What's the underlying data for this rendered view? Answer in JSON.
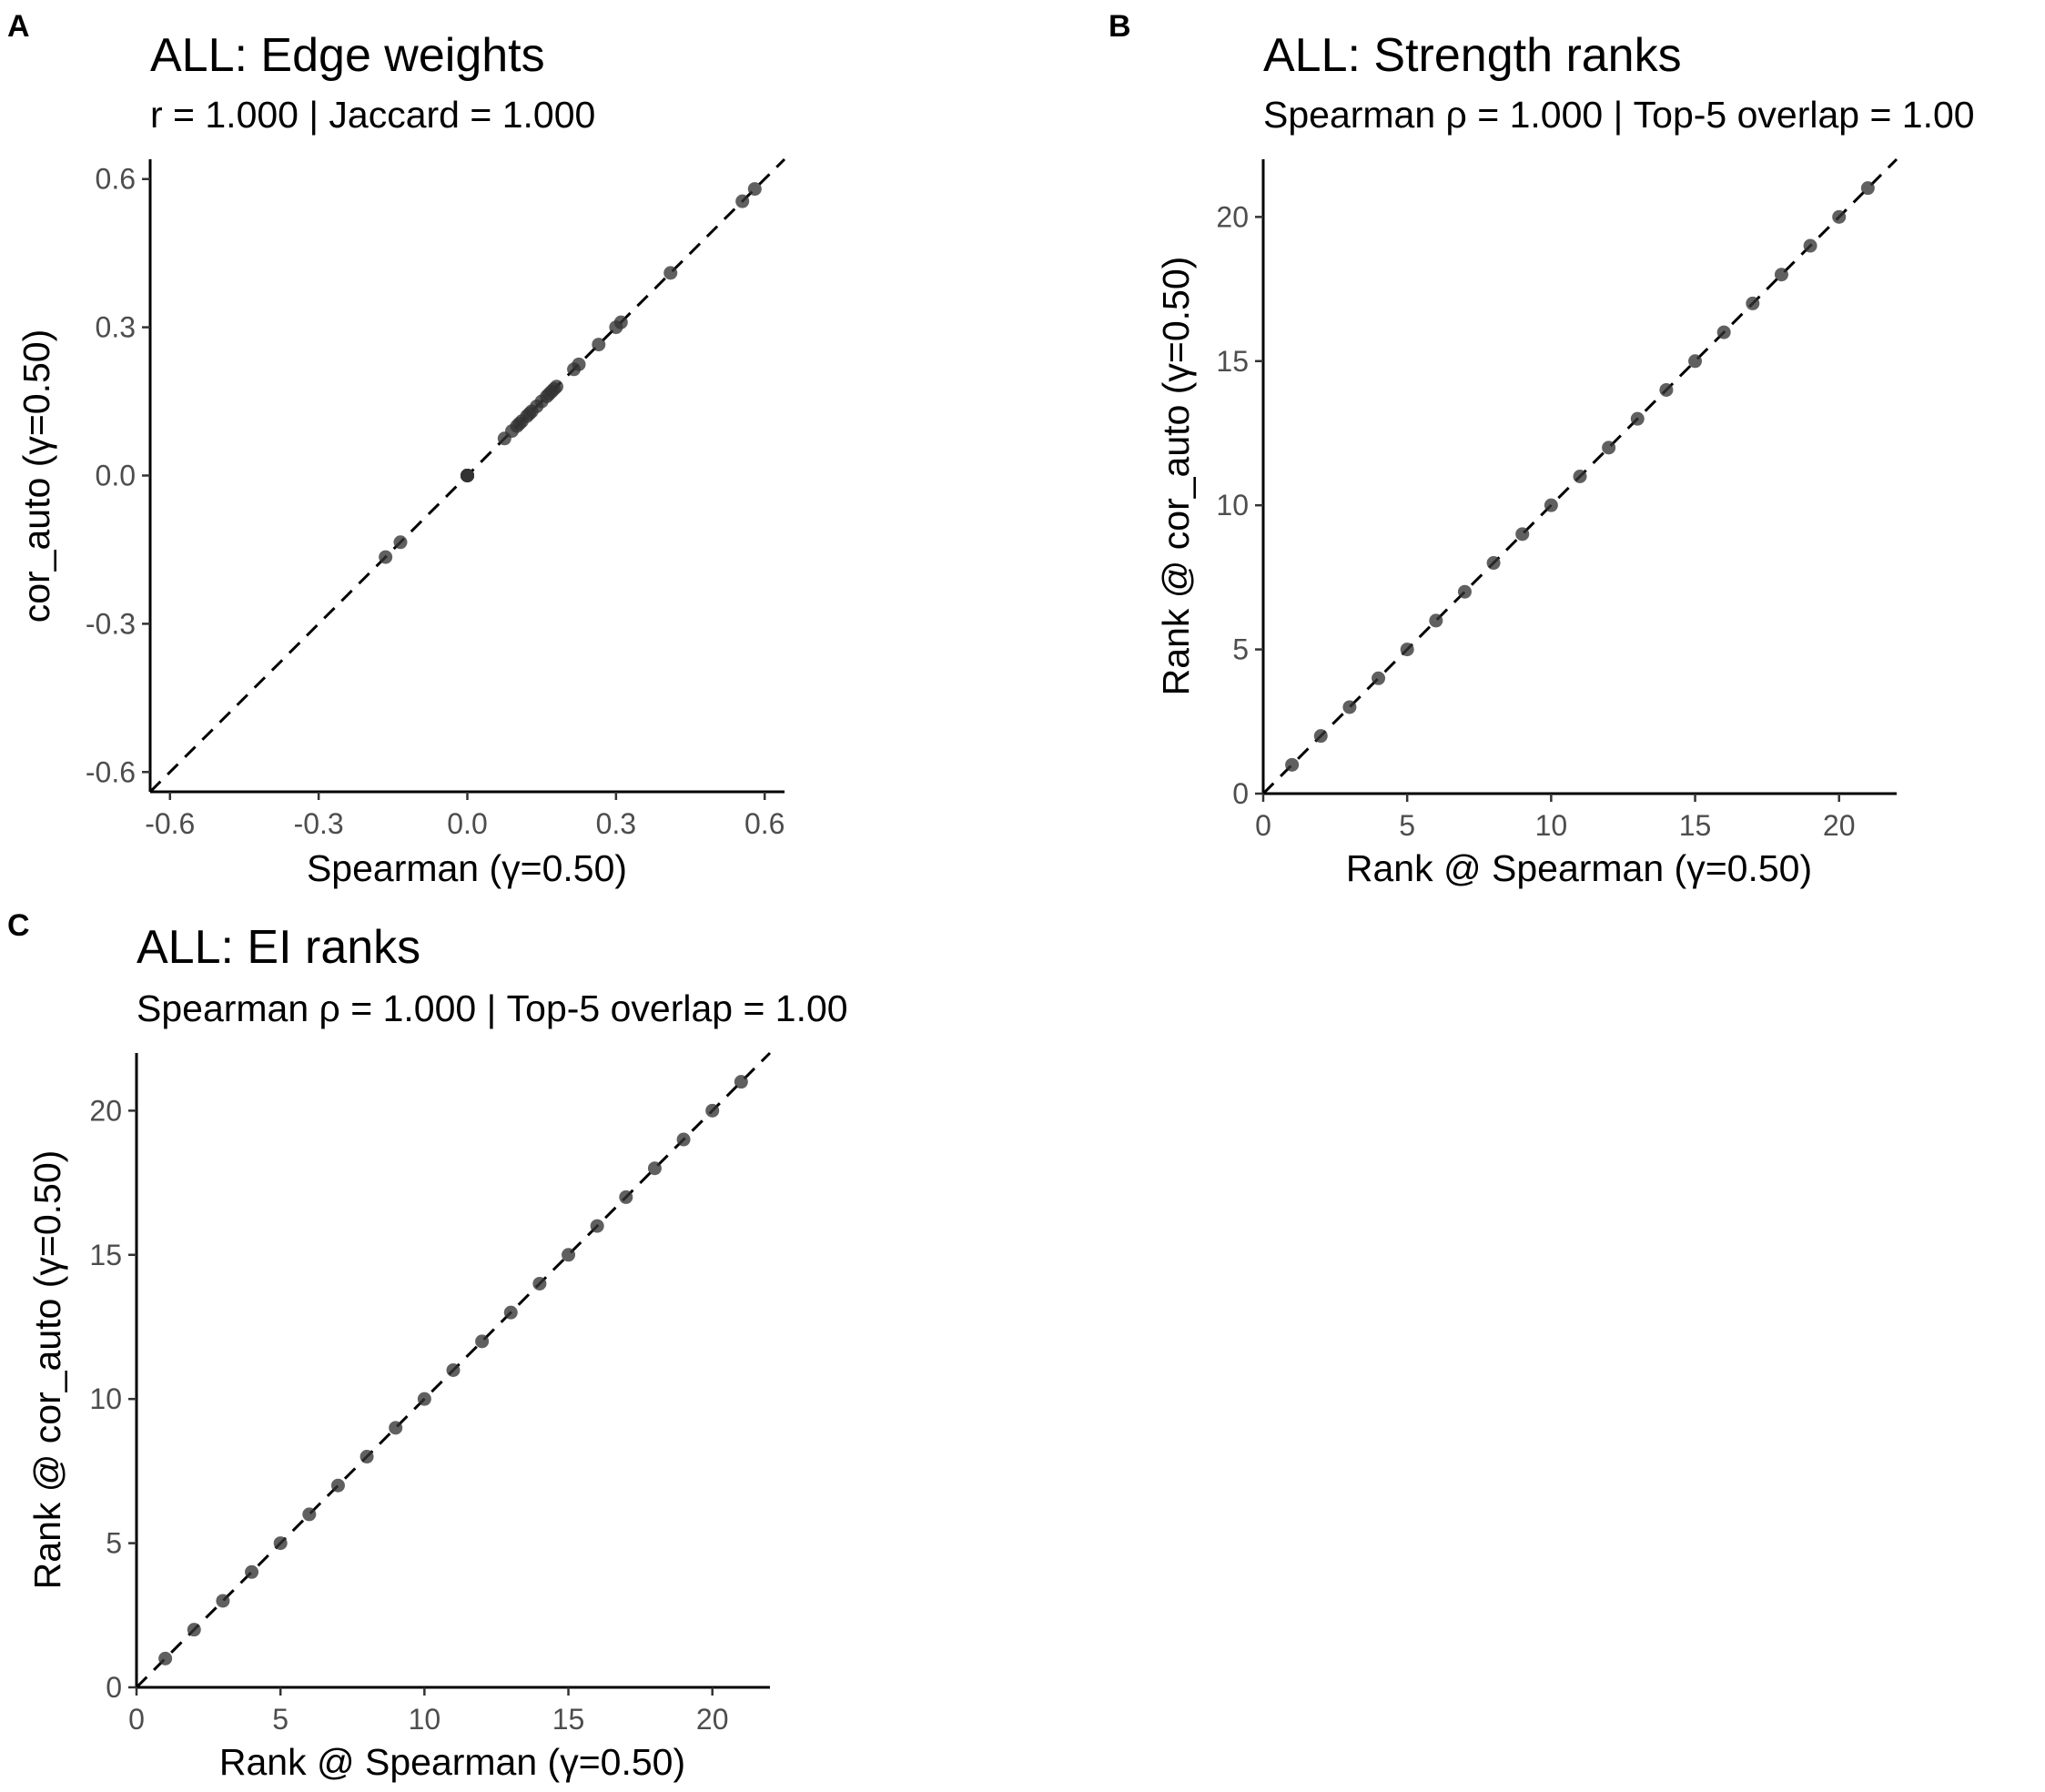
{
  "chart_data": [
    {
      "panel": "A",
      "type": "scatter",
      "title": "ALL: Edge weights",
      "subtitle": "r = 1.000 | Jaccard = 1.000",
      "xlabel": "Spearman (γ=0.50)",
      "ylabel": "cor_auto (γ=0.50)",
      "xlim": [
        -0.64,
        0.64
      ],
      "ylim": [
        -0.64,
        0.64
      ],
      "xticks": [
        -0.6,
        -0.3,
        0.0,
        0.3,
        0.6
      ],
      "yticks": [
        -0.6,
        -0.3,
        0.0,
        0.3,
        0.6
      ],
      "xtick_labels": [
        "-0.6",
        "-0.3",
        "0.0",
        "0.3",
        "0.6"
      ],
      "ytick_labels": [
        "-0.6",
        "-0.3",
        "0.0",
        "0.3",
        "0.6"
      ],
      "reference_line": "y = x (dashed)",
      "grid": false,
      "points": [
        [
          -0.165,
          -0.165
        ],
        [
          -0.135,
          -0.135
        ],
        [
          0.0,
          0.0
        ],
        [
          0.0,
          0.0
        ],
        [
          0.0,
          0.0
        ],
        [
          0.0,
          0.0
        ],
        [
          0.0,
          0.0
        ],
        [
          0.0,
          0.0
        ],
        [
          0.0,
          0.0
        ],
        [
          0.0,
          0.0
        ],
        [
          0.0,
          0.0
        ],
        [
          0.0,
          0.0
        ],
        [
          0.075,
          0.075
        ],
        [
          0.09,
          0.09
        ],
        [
          0.1,
          0.1
        ],
        [
          0.105,
          0.105
        ],
        [
          0.11,
          0.11
        ],
        [
          0.12,
          0.12
        ],
        [
          0.125,
          0.125
        ],
        [
          0.13,
          0.13
        ],
        [
          0.14,
          0.14
        ],
        [
          0.15,
          0.15
        ],
        [
          0.16,
          0.16
        ],
        [
          0.165,
          0.165
        ],
        [
          0.17,
          0.17
        ],
        [
          0.175,
          0.175
        ],
        [
          0.18,
          0.18
        ],
        [
          0.215,
          0.215
        ],
        [
          0.225,
          0.225
        ],
        [
          0.265,
          0.265
        ],
        [
          0.3,
          0.3
        ],
        [
          0.31,
          0.31
        ],
        [
          0.41,
          0.41
        ],
        [
          0.555,
          0.555
        ],
        [
          0.58,
          0.58
        ]
      ]
    },
    {
      "panel": "B",
      "type": "scatter",
      "title": "ALL: Strength ranks",
      "subtitle": "Spearman ρ = 1.000 | Top-5 overlap = 1.00",
      "xlabel": "Rank @ Spearman (γ=0.50)",
      "ylabel": "Rank @ cor_auto (γ=0.50)",
      "xlim": [
        0,
        22
      ],
      "ylim": [
        0,
        22
      ],
      "xticks": [
        0,
        5,
        10,
        15,
        20
      ],
      "yticks": [
        0,
        5,
        10,
        15,
        20
      ],
      "xtick_labels": [
        "0",
        "5",
        "10",
        "15",
        "20"
      ],
      "ytick_labels": [
        "0",
        "5",
        "10",
        "15",
        "20"
      ],
      "reference_line": "y = x (dashed)",
      "grid": false,
      "points": [
        [
          1,
          1
        ],
        [
          2,
          2
        ],
        [
          3,
          3
        ],
        [
          4,
          4
        ],
        [
          5,
          5
        ],
        [
          6,
          6
        ],
        [
          7,
          7
        ],
        [
          8,
          8
        ],
        [
          9,
          9
        ],
        [
          10,
          10
        ],
        [
          11,
          11
        ],
        [
          12,
          12
        ],
        [
          13,
          13
        ],
        [
          14,
          14
        ],
        [
          15,
          15
        ],
        [
          16,
          16
        ],
        [
          17,
          17
        ],
        [
          18,
          18
        ],
        [
          19,
          19
        ],
        [
          20,
          20
        ],
        [
          21,
          21
        ]
      ]
    },
    {
      "panel": "C",
      "type": "scatter",
      "title": "ALL: EI ranks",
      "subtitle": "Spearman ρ = 1.000 | Top-5 overlap = 1.00",
      "xlabel": "Rank @ Spearman (γ=0.50)",
      "ylabel": "Rank @ cor_auto (γ=0.50)",
      "xlim": [
        0,
        22
      ],
      "ylim": [
        0,
        22
      ],
      "xticks": [
        0,
        5,
        10,
        15,
        20
      ],
      "yticks": [
        0,
        5,
        10,
        15,
        20
      ],
      "xtick_labels": [
        "0",
        "5",
        "10",
        "15",
        "20"
      ],
      "ytick_labels": [
        "0",
        "5",
        "10",
        "15",
        "20"
      ],
      "reference_line": "y = x (dashed)",
      "grid": false,
      "points": [
        [
          1,
          1
        ],
        [
          2,
          2
        ],
        [
          3,
          3
        ],
        [
          4,
          4
        ],
        [
          5,
          5
        ],
        [
          6,
          6
        ],
        [
          7,
          7
        ],
        [
          8,
          8
        ],
        [
          9,
          9
        ],
        [
          10,
          10
        ],
        [
          11,
          11
        ],
        [
          12,
          12
        ],
        [
          13,
          13
        ],
        [
          14,
          14
        ],
        [
          15,
          15
        ],
        [
          16,
          16
        ],
        [
          17,
          17
        ],
        [
          18,
          18
        ],
        [
          19,
          19
        ],
        [
          20,
          20
        ],
        [
          21,
          21
        ]
      ]
    }
  ],
  "colors": {
    "point": "#333333",
    "axis": "#000000",
    "tick_label": "#4d4d4d"
  }
}
